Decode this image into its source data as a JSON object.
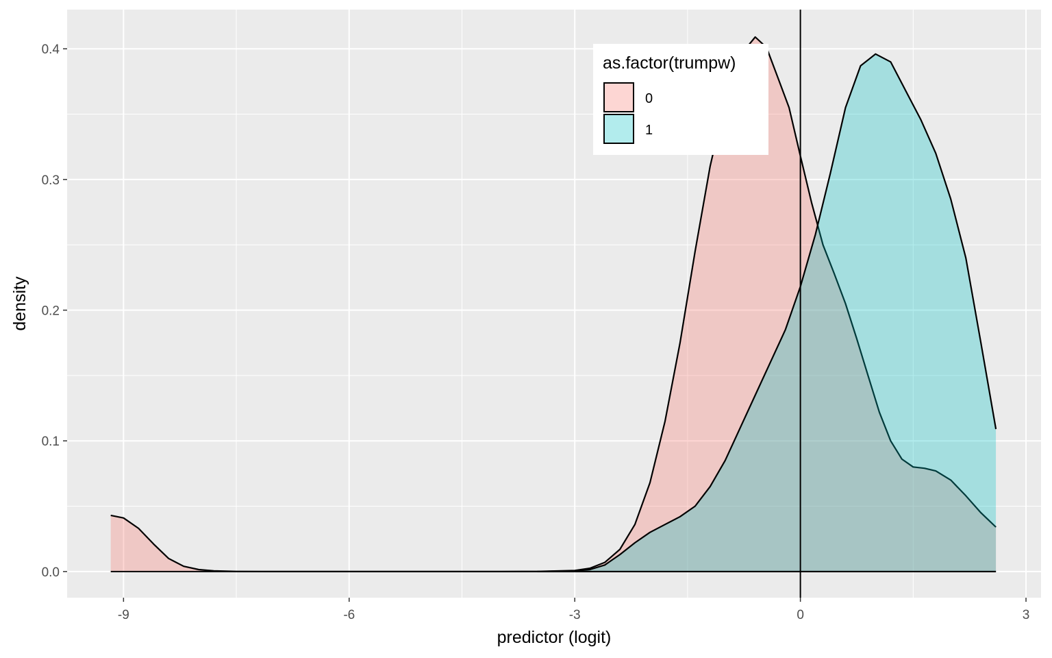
{
  "chart_data": {
    "type": "area",
    "xlabel": "predictor (logit)",
    "ylabel": "density",
    "xlim": [
      -9.75,
      3.2
    ],
    "ylim": [
      -0.02,
      0.43
    ],
    "x_ticks": [
      -9,
      -6,
      -3,
      0,
      3
    ],
    "x_tick_labels": [
      "-9",
      "-6",
      "-3",
      "0",
      "3"
    ],
    "y_ticks": [
      0.0,
      0.1,
      0.2,
      0.3,
      0.4
    ],
    "y_tick_labels": [
      "0.0",
      "0.1",
      "0.2",
      "0.3",
      "0.4"
    ],
    "grid": true,
    "reference_line": {
      "orientation": "vertical",
      "x": 0
    },
    "legend": {
      "title": "as.factor(trumpw)",
      "placement": "top-right-inside",
      "entries": [
        "0",
        "1"
      ]
    },
    "series": [
      {
        "name": "0",
        "color": "#F8766D",
        "x": [
          -9.17,
          -9.0,
          -8.8,
          -8.6,
          -8.4,
          -8.2,
          -8.0,
          -7.8,
          -7.5,
          -7,
          -6,
          -5,
          -4,
          -3.5,
          -3.0,
          -2.8,
          -2.6,
          -2.4,
          -2.2,
          -2.0,
          -1.8,
          -1.6,
          -1.4,
          -1.2,
          -1.0,
          -0.8,
          -0.6,
          -0.45,
          -0.3,
          -0.15,
          0.0,
          0.15,
          0.3,
          0.45,
          0.6,
          0.75,
          0.9,
          1.05,
          1.2,
          1.35,
          1.5,
          1.65,
          1.8,
          2.0,
          2.2,
          2.4,
          2.6
        ],
        "values": [
          0.043,
          0.041,
          0.033,
          0.021,
          0.01,
          0.004,
          0.0015,
          0.0005,
          0.0001,
          0.0,
          0.0,
          0.0,
          0.0,
          0.0001,
          0.0008,
          0.0025,
          0.007,
          0.017,
          0.036,
          0.068,
          0.115,
          0.175,
          0.245,
          0.31,
          0.36,
          0.395,
          0.409,
          0.401,
          0.378,
          0.355,
          0.318,
          0.282,
          0.25,
          0.228,
          0.205,
          0.178,
          0.15,
          0.122,
          0.1,
          0.086,
          0.08,
          0.079,
          0.077,
          0.07,
          0.058,
          0.045,
          0.034
        ]
      },
      {
        "name": "1",
        "color": "#00BFC4",
        "x": [
          -3.5,
          -3.0,
          -2.8,
          -2.6,
          -2.4,
          -2.2,
          -2.0,
          -1.8,
          -1.6,
          -1.4,
          -1.2,
          -1.0,
          -0.8,
          -0.6,
          -0.4,
          -0.2,
          0.0,
          0.2,
          0.4,
          0.6,
          0.8,
          1.0,
          1.2,
          1.4,
          1.6,
          1.8,
          2.0,
          2.2,
          2.4,
          2.6
        ],
        "values": [
          0.0,
          0.0005,
          0.0015,
          0.005,
          0.013,
          0.022,
          0.03,
          0.036,
          0.042,
          0.05,
          0.065,
          0.085,
          0.11,
          0.135,
          0.16,
          0.185,
          0.218,
          0.258,
          0.305,
          0.355,
          0.387,
          0.396,
          0.39,
          0.368,
          0.346,
          0.32,
          0.285,
          0.24,
          0.175,
          0.109
        ]
      }
    ]
  }
}
